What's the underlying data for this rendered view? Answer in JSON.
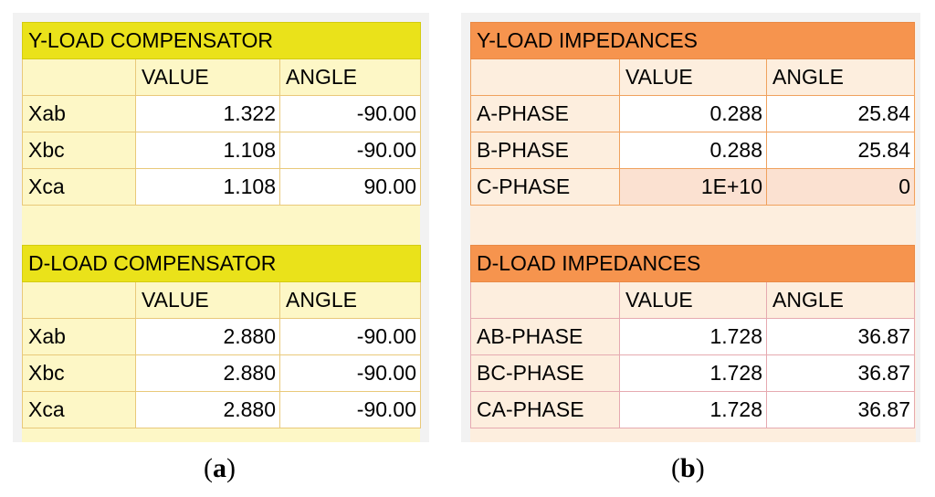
{
  "panel_a": {
    "y_table": {
      "title": "Y-LOAD COMPENSATOR",
      "headers": [
        "",
        "VALUE",
        "ANGLE"
      ],
      "rows": [
        {
          "label": "Xab",
          "value": "1.322",
          "angle": "-90.00"
        },
        {
          "label": "Xbc",
          "value": "1.108",
          "angle": "-90.00"
        },
        {
          "label": "Xca",
          "value": "1.108",
          "angle": "90.00"
        }
      ]
    },
    "d_table": {
      "title": "D-LOAD COMPENSATOR",
      "headers": [
        "",
        "VALUE",
        "ANGLE"
      ],
      "rows": [
        {
          "label": "Xab",
          "value": "2.880",
          "angle": "-90.00"
        },
        {
          "label": "Xbc",
          "value": "2.880",
          "angle": "-90.00"
        },
        {
          "label": "Xca",
          "value": "2.880",
          "angle": "-90.00"
        }
      ]
    },
    "caption_open": "(",
    "caption_letter": "a",
    "caption_close": ")"
  },
  "panel_b": {
    "y_table": {
      "title": "Y-LOAD IMPEDANCES",
      "headers": [
        "",
        "VALUE",
        "ANGLE"
      ],
      "rows": [
        {
          "label": "A-PHASE",
          "value": "0.288",
          "angle": "25.84"
        },
        {
          "label": "B-PHASE",
          "value": "0.288",
          "angle": "25.84"
        },
        {
          "label": "C-PHASE",
          "value": "1E+10",
          "angle": "0"
        }
      ]
    },
    "d_table": {
      "title": "D-LOAD IMPEDANCES",
      "headers": [
        "",
        "VALUE",
        "ANGLE"
      ],
      "rows": [
        {
          "label": "AB-PHASE",
          "value": "1.728",
          "angle": "36.87"
        },
        {
          "label": "BC-PHASE",
          "value": "1.728",
          "angle": "36.87"
        },
        {
          "label": "CA-PHASE",
          "value": "1.728",
          "angle": "36.87"
        }
      ]
    },
    "caption_open": "(",
    "caption_letter": "b",
    "caption_close": ")"
  },
  "colors": {
    "yellow_title": "#eae21a",
    "yellow_fill": "#fdf7c6",
    "orange_title": "#f6944e",
    "orange_fill": "#fdeede",
    "highlight": "#fbe1d1"
  }
}
